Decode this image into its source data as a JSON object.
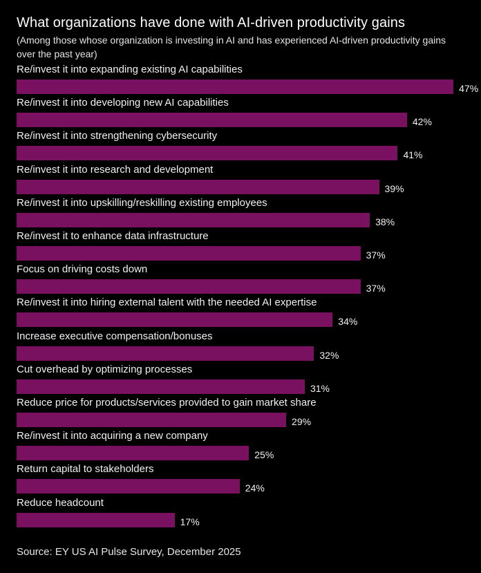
{
  "chart_data": {
    "type": "bar",
    "orientation": "horizontal",
    "title": "What organizations have done with AI-driven productivity gains",
    "subtitle": "(Among those whose organization is investing in AI and has experienced AI-driven productivity gains over the past year)",
    "categories": [
      "Re/invest it into expanding existing AI capabilities",
      "Re/invest it into developing new AI capabilities",
      "Re/invest it into strengthening cybersecurity",
      "Re/invest it into research and development",
      "Re/invest it into upskilling/reskilling existing employees",
      "Re/invest it to enhance data infrastructure",
      "Focus on driving costs down",
      "Re/invest it into hiring external talent with the needed AI expertise",
      "Increase executive compensation/bonuses",
      "Cut overhead by optimizing processes",
      "Reduce price for products/services provided to gain market share",
      "Re/invest it into acquiring a new company",
      "Return capital to stakeholders",
      "Reduce headcount"
    ],
    "values": [
      47,
      42,
      41,
      39,
      38,
      37,
      37,
      34,
      32,
      31,
      29,
      25,
      24,
      17
    ],
    "value_labels": [
      "47%",
      "42%",
      "41%",
      "39%",
      "38%",
      "37%",
      "37%",
      "34%",
      "32%",
      "31%",
      "29%",
      "25%",
      "24%",
      "17%"
    ],
    "unit": "%",
    "grid": false,
    "bar_color": "#7a1060",
    "background": "#000000",
    "source": "Source: EY US AI Pulse Survey, December 2025"
  }
}
